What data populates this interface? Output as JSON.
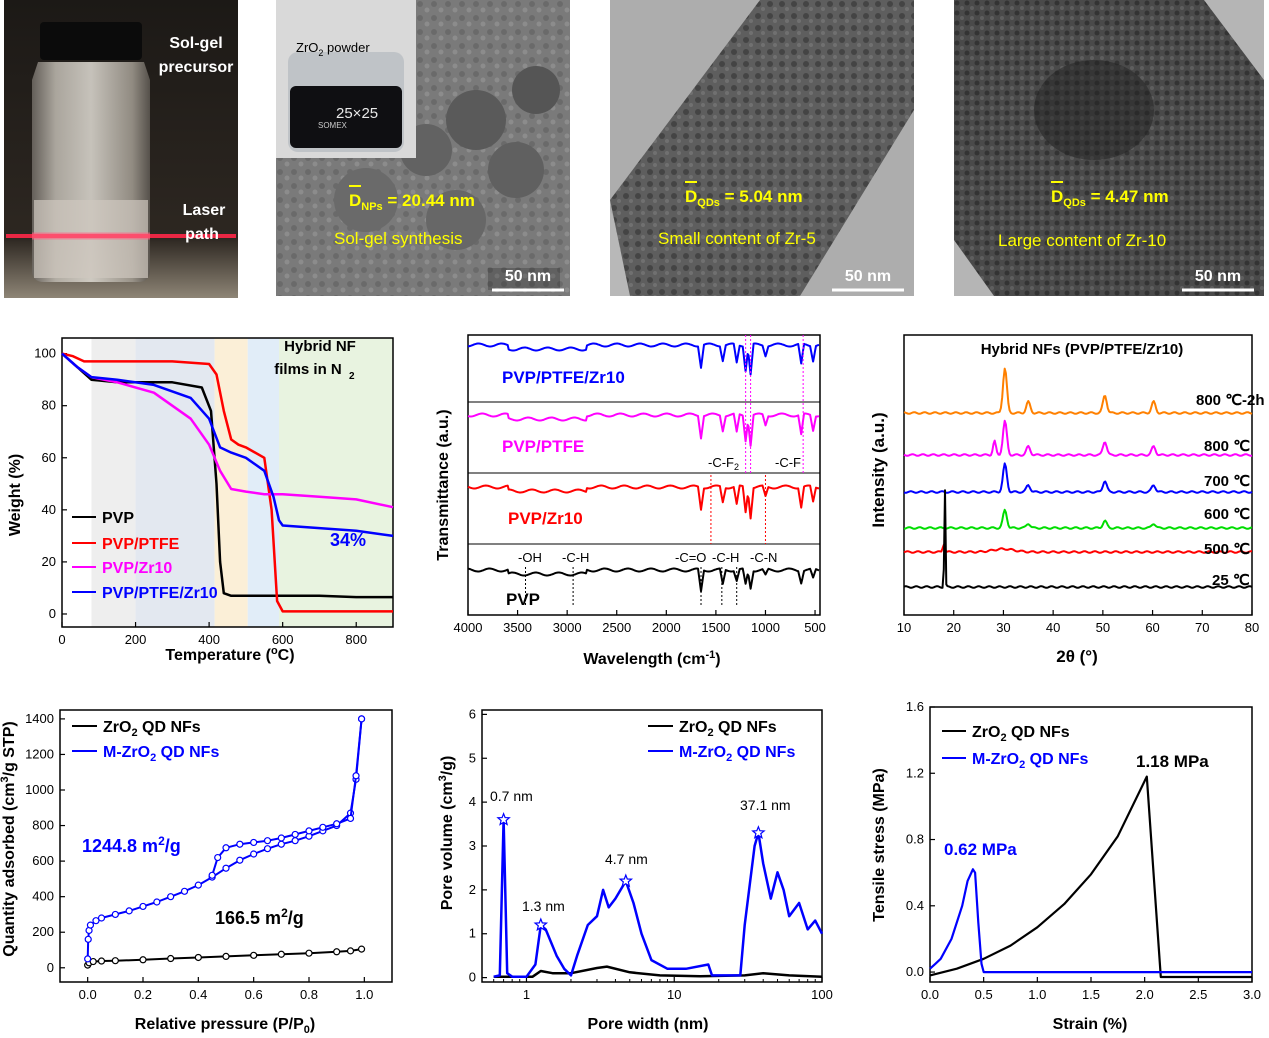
{
  "photos": {
    "vial": {
      "label_top": "Sol-gel precursor",
      "label_top_line1": "Sol-gel",
      "label_top_line2": "precursor",
      "label_laser_line1": "Laser",
      "label_laser_line2": "path"
    },
    "tem1": {
      "inset_label": "ZrO2 powder",
      "inset_label_main": "ZrO",
      "inset_label_sub": "2",
      "inset_label_rest": " powder",
      "jar_text_1": "SOMEX",
      "jar_text_2": "25×25",
      "size_prefix": "D",
      "size_sub": "NPs",
      "size_value": " = 20.44 nm",
      "caption": "Sol-gel synthesis",
      "scale": "50 nm"
    },
    "tem2": {
      "size_prefix": "D",
      "size_sub": "QDs",
      "size_value": " = 5.04 nm",
      "caption": "Small content of Zr-5",
      "scale": "50 nm"
    },
    "tem3": {
      "size_prefix": "D",
      "size_sub": "QDs",
      "size_value": " = 4.47 nm",
      "caption": "Large content of Zr-10",
      "scale": "50 nm"
    }
  },
  "chart_data": [
    {
      "id": "tga",
      "type": "line",
      "xlabel": "Temperature (oC)",
      "ylabel": "Weight (%)",
      "xlim": [
        0,
        900
      ],
      "ylim": [
        -5,
        106
      ],
      "xticks": [
        0,
        200,
        400,
        600,
        800
      ],
      "yticks": [
        0,
        20,
        40,
        60,
        80,
        100
      ],
      "annotation": "Hybrid NF films in N2",
      "annotation_line1": "Hybrid NF",
      "annotation_line2": "films in N",
      "value_label": "34%",
      "series": [
        {
          "name": "PVP",
          "color": "#000000",
          "x": [
            0,
            40,
            80,
            150,
            300,
            380,
            405,
            420,
            430,
            440,
            460,
            500,
            600,
            700,
            800,
            900
          ],
          "y": [
            100,
            95,
            90,
            89,
            89,
            87,
            78,
            50,
            20,
            8,
            7,
            7,
            7,
            7,
            6.5,
            6.5
          ]
        },
        {
          "name": "PVP/PTFE",
          "color": "#ff0000",
          "x": [
            0,
            30,
            60,
            100,
            300,
            400,
            420,
            440,
            460,
            480,
            500,
            550,
            570,
            585,
            600,
            700,
            800,
            900
          ],
          "y": [
            100,
            99,
            97,
            97,
            97,
            96,
            92,
            78,
            67,
            65,
            64,
            60,
            40,
            5,
            1,
            1,
            1,
            1
          ]
        },
        {
          "name": "PVP/Zr10",
          "color": "#ff00ff",
          "x": [
            0,
            40,
            80,
            150,
            250,
            300,
            350,
            400,
            430,
            460,
            500,
            550,
            600,
            700,
            800,
            900
          ],
          "y": [
            100,
            95,
            91,
            89,
            85,
            80,
            75,
            65,
            55,
            48,
            47,
            46,
            46,
            45,
            44,
            41
          ]
        },
        {
          "name": "PVP/PTFE/Zr10",
          "color": "#0000ff",
          "x": [
            0,
            40,
            80,
            150,
            250,
            350,
            400,
            430,
            460,
            500,
            550,
            575,
            590,
            600,
            700,
            800,
            900
          ],
          "y": [
            100,
            95,
            91,
            90,
            88,
            83,
            75,
            64,
            62,
            60,
            55,
            45,
            36,
            34,
            33,
            32,
            30
          ]
        }
      ],
      "bands": [
        {
          "x": [
            80,
            200
          ],
          "color": "#eeeeee"
        },
        {
          "x": [
            200,
            415
          ],
          "color": "#e3e8f0"
        },
        {
          "x": [
            415,
            505
          ],
          "color": "#fbefd7"
        },
        {
          "x": [
            505,
            590
          ],
          "color": "#e1edf8"
        },
        {
          "x": [
            590,
            900
          ],
          "color": "#e8f3e0"
        }
      ]
    },
    {
      "id": "ftir",
      "type": "line",
      "xlabel": "Wavelength (cm-1)",
      "ylabel": "Transmittance (a.u.)",
      "xlim": [
        4000,
        450
      ],
      "xticks": [
        4000,
        3500,
        3000,
        2500,
        2000,
        1500,
        1000,
        500
      ],
      "panels": [
        "PVP/PTFE/Zr10",
        "PVP/PTFE",
        "PVP/Zr10",
        "PVP"
      ],
      "peak_labels": [
        "-OH",
        "-C-H",
        "-C=O",
        "-C-H",
        "-C-N",
        "-C-F2",
        "-C-F"
      ],
      "series": [
        {
          "name": "PVP/PTFE/Zr10",
          "color": "#0000ff"
        },
        {
          "name": "PVP/PTFE",
          "color": "#ff00ff"
        },
        {
          "name": "PVP/Zr10",
          "color": "#ff0000"
        },
        {
          "name": "PVP",
          "color": "#000000"
        }
      ]
    },
    {
      "id": "xrd",
      "type": "line",
      "title": "Hybrid NFs (PVP/PTFE/Zr10)",
      "xlabel": "2θ (°)",
      "ylabel": "Intensity (a.u.)",
      "xlim": [
        10,
        80
      ],
      "xticks": [
        10,
        20,
        30,
        40,
        50,
        60,
        70,
        80
      ],
      "series": [
        {
          "name": "800 ℃-2h",
          "color": "#ff8000"
        },
        {
          "name": "800 ℃",
          "color": "#ff00ff"
        },
        {
          "name": "700 ℃",
          "color": "#0000ff"
        },
        {
          "name": "600 ℃",
          "color": "#00dd00"
        },
        {
          "name": "500 ℃",
          "color": "#ff0000"
        },
        {
          "name": "25 ℃",
          "color": "#000000"
        }
      ]
    },
    {
      "id": "bet",
      "type": "scatter",
      "xlabel": "Relative pressure (P/P0)",
      "ylabel": "Quantity adsorbed (cm3/g STP)",
      "xlim": [
        -0.1,
        1.1
      ],
      "ylim": [
        -80,
        1450
      ],
      "xticks": [
        0.0,
        0.2,
        0.4,
        0.6,
        0.8,
        1.0
      ],
      "yticks": [
        0,
        200,
        400,
        600,
        800,
        1000,
        1200,
        1400
      ],
      "value_labels": [
        "1244.8 m2/g",
        "166.5 m2/g"
      ],
      "series": [
        {
          "name": "ZrO2 QD NFs",
          "color": "#000000",
          "x": [
            0,
            0.005,
            0.02,
            0.05,
            0.1,
            0.2,
            0.3,
            0.4,
            0.5,
            0.6,
            0.7,
            0.8,
            0.9,
            0.95,
            0.99
          ],
          "y": [
            15,
            28,
            35,
            38,
            40,
            45,
            52,
            58,
            64,
            70,
            76,
            82,
            90,
            95,
            105
          ]
        },
        {
          "name": "M-ZrO2 QD NFs",
          "color": "#0000ff",
          "x": [
            0,
            0.002,
            0.005,
            0.01,
            0.03,
            0.05,
            0.1,
            0.15,
            0.2,
            0.25,
            0.3,
            0.35,
            0.4,
            0.45,
            0.5,
            0.55,
            0.6,
            0.65,
            0.7,
            0.75,
            0.8,
            0.85,
            0.9,
            0.95,
            0.97,
            0.99
          ],
          "y": [
            50,
            160,
            210,
            240,
            265,
            280,
            300,
            320,
            345,
            370,
            400,
            430,
            465,
            510,
            560,
            605,
            640,
            670,
            695,
            715,
            740,
            770,
            800,
            870,
            1060,
            1400
          ]
        },
        {
          "name": "M-ZrO2 QD NFs desorption",
          "color": "#0000ff",
          "x": [
            0.99,
            0.97,
            0.95,
            0.9,
            0.85,
            0.8,
            0.75,
            0.7,
            0.65,
            0.6,
            0.55,
            0.5,
            0.47,
            0.45
          ],
          "y": [
            1400,
            1080,
            840,
            810,
            790,
            770,
            750,
            730,
            715,
            705,
            695,
            675,
            620,
            520
          ]
        }
      ]
    },
    {
      "id": "pore",
      "type": "line",
      "xlabel": "Pore width (nm)",
      "ylabel": "Pore volume (cm3/g)",
      "xscale": "log",
      "xlim": [
        0.5,
        100
      ],
      "ylim": [
        -0.1,
        6.1
      ],
      "xticks": [
        1,
        10,
        100
      ],
      "yticks": [
        0,
        1,
        2,
        3,
        4,
        5,
        6
      ],
      "peak_labels": [
        "0.7 nm",
        "1.3 nm",
        "4.7 nm",
        "37.1 nm"
      ],
      "series": [
        {
          "name": "ZrO2 QD NFs",
          "color": "#000000",
          "x": [
            0.6,
            1.1,
            1.25,
            1.5,
            2,
            3,
            3.5,
            5,
            8,
            15,
            30,
            40,
            60,
            100
          ],
          "y": [
            0.02,
            0.02,
            0.15,
            0.1,
            0.1,
            0.22,
            0.25,
            0.12,
            0.05,
            0.03,
            0.05,
            0.1,
            0.05,
            0.02
          ]
        },
        {
          "name": "M-ZrO2 QD NFs",
          "color": "#0000ff",
          "x": [
            0.6,
            0.66,
            0.7,
            0.74,
            0.8,
            1.0,
            1.15,
            1.25,
            1.35,
            1.6,
            1.8,
            2,
            2.2,
            2.6,
            3,
            3.3,
            3.6,
            4,
            4.7,
            5.3,
            6,
            7,
            9,
            12,
            17,
            18,
            28,
            30,
            35,
            37.1,
            40,
            45,
            50,
            55,
            60,
            70,
            80,
            90,
            100
          ],
          "y": [
            0.02,
            0.05,
            3.6,
            0.1,
            0.02,
            0.02,
            0.3,
            1.2,
            1.1,
            0.5,
            0.2,
            0.05,
            0.5,
            1.2,
            1.4,
            2.0,
            1.6,
            1.8,
            2.2,
            1.7,
            1.0,
            0.4,
            0.2,
            0.2,
            0.3,
            0.05,
            0.05,
            1.2,
            3.0,
            3.3,
            2.6,
            1.8,
            2.4,
            2.0,
            1.4,
            1.7,
            1.1,
            1.3,
            1.0
          ]
        }
      ]
    },
    {
      "id": "tensile",
      "type": "line",
      "xlabel": "Strain (%)",
      "ylabel": "Tensile stress (MPa)",
      "xlim": [
        0,
        3.0
      ],
      "ylim": [
        -0.06,
        1.6
      ],
      "xticks": [
        0.0,
        0.5,
        1.0,
        1.5,
        2.0,
        2.5,
        3.0
      ],
      "yticks": [
        0.0,
        0.4,
        0.8,
        1.2,
        1.6
      ],
      "value_labels": [
        "1.18 MPa",
        "0.62 MPa"
      ],
      "series": [
        {
          "name": "ZrO2 QD NFs",
          "color": "#000000",
          "x": [
            0,
            0.25,
            0.5,
            0.75,
            1.0,
            1.25,
            1.5,
            1.75,
            2.02,
            2.15,
            3.0
          ],
          "y": [
            -0.02,
            0.02,
            0.08,
            0.16,
            0.27,
            0.41,
            0.59,
            0.82,
            1.18,
            -0.03,
            -0.03
          ]
        },
        {
          "name": "M-ZrO2 QD NFs",
          "color": "#0000ff",
          "x": [
            0,
            0.05,
            0.1,
            0.2,
            0.3,
            0.35,
            0.4,
            0.42,
            0.45,
            0.48,
            0.5,
            1.0,
            2.0,
            3.0
          ],
          "y": [
            0.02,
            0.05,
            0.08,
            0.2,
            0.4,
            0.55,
            0.62,
            0.6,
            0.3,
            0.05,
            0.0,
            0.0,
            0.0,
            0.0
          ]
        }
      ]
    }
  ]
}
